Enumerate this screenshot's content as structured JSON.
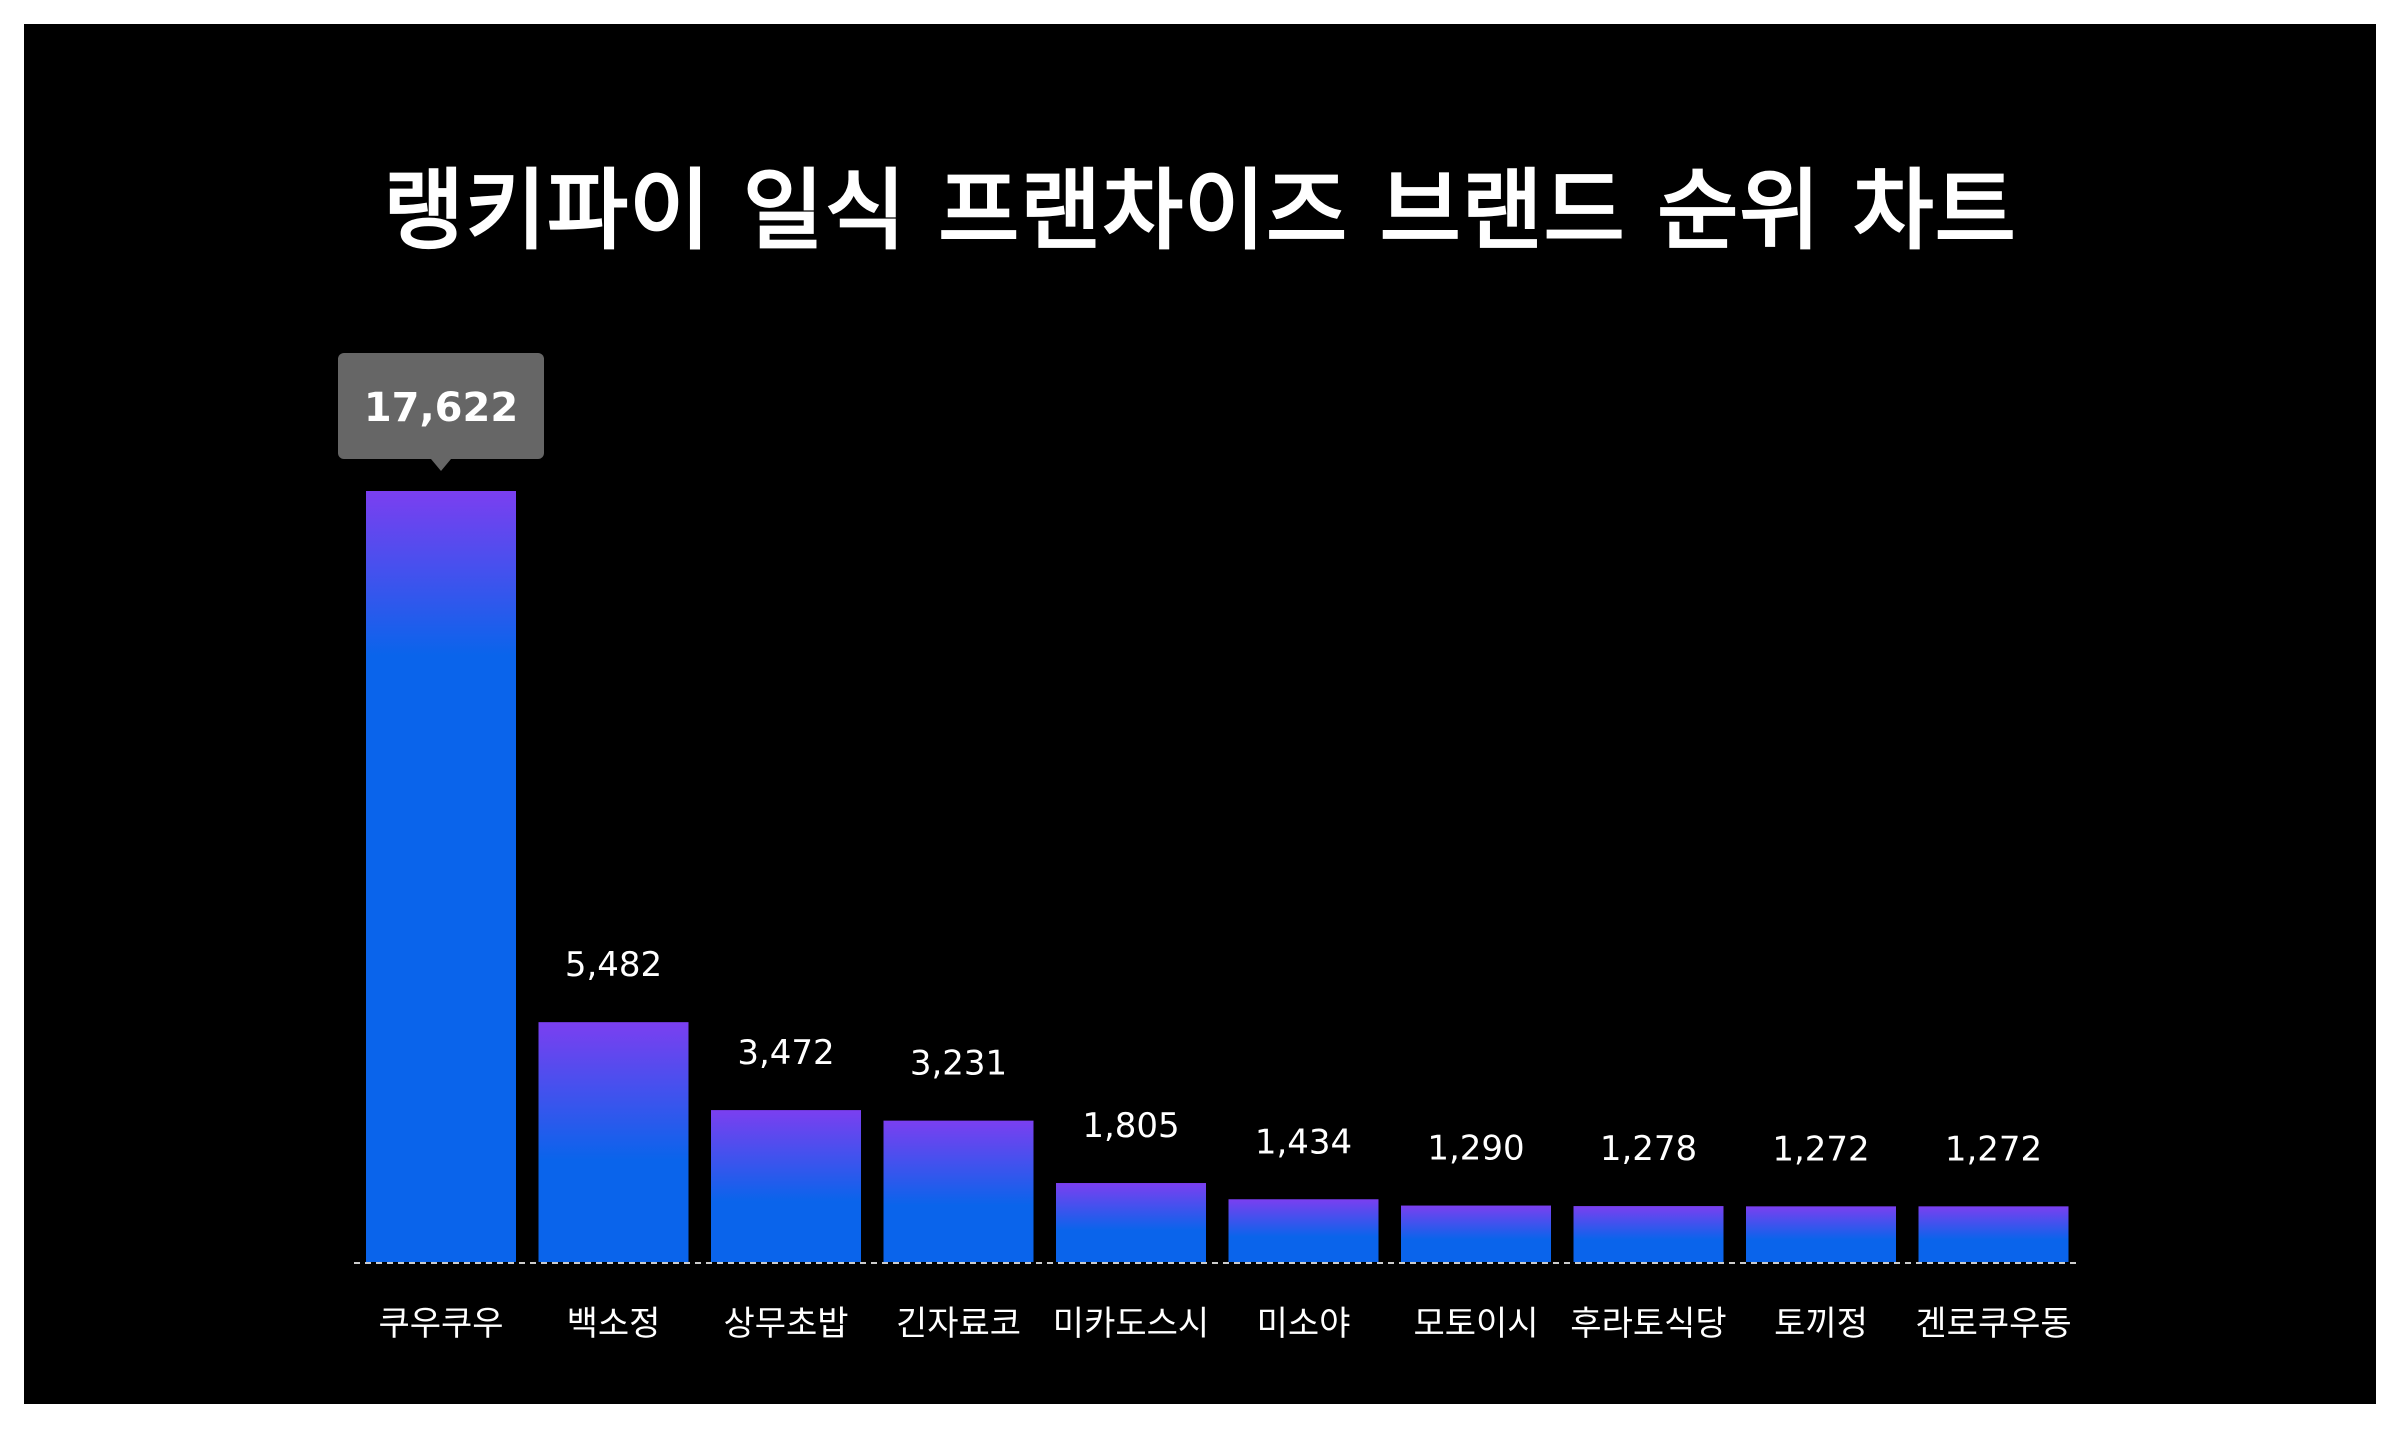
{
  "chart_data": {
    "type": "bar",
    "title": "랭키파이 일식 프랜차이즈 브랜드 순위 차트",
    "categories": [
      "쿠우쿠우",
      "백소정",
      "상무초밥",
      "긴자료코",
      "미카도스시",
      "미소야",
      "모토이시",
      "후라토식당",
      "토끼정",
      "겐로쿠우동"
    ],
    "values": [
      17622,
      5482,
      3472,
      3231,
      1805,
      1434,
      1290,
      1278,
      1272,
      1272
    ],
    "value_labels": [
      "17,622",
      "5,482",
      "3,472",
      "3,231",
      "1,805",
      "1,434",
      "1,290",
      "1,278",
      "1,272",
      "1,272"
    ],
    "highlighted_index": 0,
    "ylim": [
      0,
      17622
    ],
    "grid": false,
    "xlabel": "",
    "ylabel": ""
  },
  "colors": {
    "background": "#000000",
    "frame": "#ffffff",
    "bar_top": "#7b3ff0",
    "bar_bottom": "#0a64eb",
    "text": "#ffffff",
    "tooltip_bg": "#666666",
    "baseline": "#cccccc"
  }
}
